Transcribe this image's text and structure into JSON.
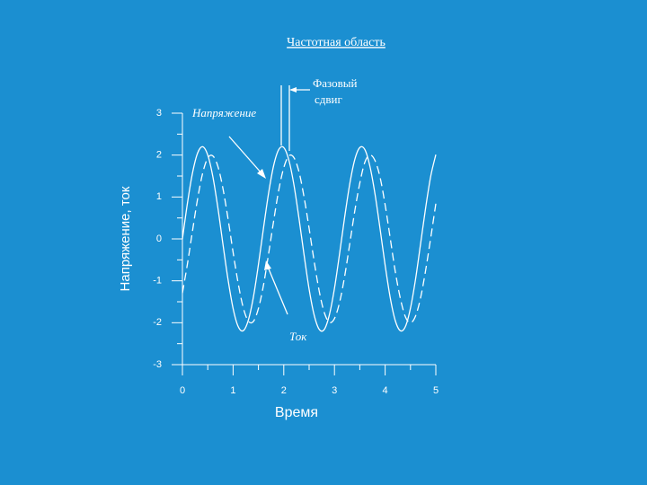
{
  "chart_data": {
    "type": "line",
    "title": "Частотная область",
    "x_label": "Время",
    "y_label": "Напряжение, ток",
    "phase_label": [
      "Фазовый",
      "сдвиг"
    ],
    "x": [
      0,
      0.1,
      0.2,
      0.3,
      0.4,
      0.5,
      0.6,
      0.7,
      0.8,
      0.9,
      1,
      1.1,
      1.2,
      1.3,
      1.4,
      1.5,
      1.6,
      1.7,
      1.8,
      1.9,
      2,
      2.1,
      2.2,
      2.3,
      2.4,
      2.5,
      2.6,
      2.7,
      2.8,
      2.9,
      3,
      3.1,
      3.2,
      3.3,
      3.4,
      3.5,
      3.6,
      3.7,
      3.8,
      3.9,
      4,
      4.1,
      4.2,
      4.3,
      4.4,
      4.5,
      4.6,
      4.7,
      4.8,
      4.9,
      5
    ],
    "series": [
      {
        "name": "Напряжение",
        "color": "#ffffff",
        "dashed": false,
        "values": [
          0,
          0.86,
          1.58,
          2.05,
          2.2,
          2,
          1.49,
          0.74,
          -0.13,
          -0.97,
          -1.66,
          -2.09,
          -2.19,
          -1.94,
          -1.39,
          -0.61,
          0.26,
          1.09,
          1.75,
          2.13,
          2.18,
          1.88,
          1.29,
          0.49,
          -0.38,
          -1.2,
          -1.82,
          -2.16,
          -2.16,
          -1.81,
          -1.18,
          -0.36,
          0.51,
          1.3,
          1.89,
          2.18,
          2.13,
          1.73,
          1.07,
          0.24,
          -0.63,
          -1.4,
          -1.95,
          -2.19,
          -2.09,
          -1.65,
          -0.96,
          -0.11,
          0.75,
          1.5,
          2.01
        ]
      },
      {
        "name": "Ток",
        "color": "#ffffff",
        "dashed": true,
        "values": [
          -1.29,
          -0.59,
          0.2,
          0.96,
          1.57,
          1.93,
          1.98,
          1.73,
          1.2,
          0.48,
          -0.32,
          -1.06,
          -1.64,
          -1.96,
          -1.97,
          -1.66,
          -1.1,
          -0.36,
          0.43,
          1.16,
          1.7,
          1.98,
          1.94,
          1.6,
          1,
          0.25,
          -0.54,
          -1.25,
          -1.76,
          -1.99,
          -1.9,
          -1.52,
          -0.9,
          -0.13,
          0.66,
          1.33,
          1.83,
          2,
          1.87,
          1.47,
          0.81,
          0.02,
          -0.78,
          -1.42,
          -1.86,
          -2,
          -1.84,
          -1.4,
          -0.74,
          0.03,
          0.84
        ]
      }
    ],
    "xlim": [
      0,
      5
    ],
    "xticks": [
      0,
      1,
      2,
      3,
      4,
      5
    ],
    "ylim": [
      -3,
      3
    ],
    "yticks": [
      -3,
      -2,
      -1,
      0,
      1,
      2,
      3
    ]
  }
}
